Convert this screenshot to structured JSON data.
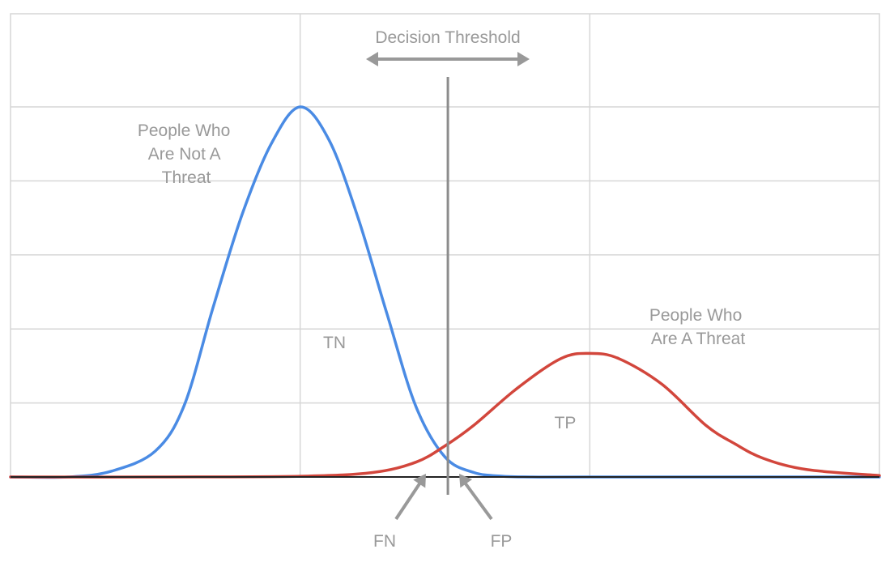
{
  "chart_data": {
    "type": "line",
    "title": "",
    "xlabel": "",
    "ylabel": "",
    "xlim": [
      0,
      6
    ],
    "ylim": [
      0,
      5
    ],
    "grid": true,
    "series": [
      {
        "name": "People Who Are Not A Threat",
        "color": "#4a8be4",
        "x": [
          0,
          0.4,
          0.7,
          1.0,
          1.2,
          1.4,
          1.6,
          1.8,
          2.0,
          2.2,
          2.4,
          2.6,
          2.8,
          3.0,
          3.2,
          3.4,
          3.6,
          4.0,
          5.0,
          6.0
        ],
        "y": [
          0,
          0,
          0.08,
          0.35,
          0.97,
          2.3,
          3.55,
          4.5,
          5.0,
          4.55,
          3.5,
          2.2,
          0.95,
          0.27,
          0.06,
          0.01,
          0,
          0,
          0,
          0
        ]
      },
      {
        "name": "People Who Are A Threat",
        "color": "#d2463c",
        "x": [
          0,
          1.0,
          2.0,
          2.5,
          2.8,
          3.0,
          3.2,
          3.5,
          3.8,
          4.0,
          4.2,
          4.5,
          4.8,
          5.0,
          5.2,
          5.5,
          6.0
        ],
        "y": [
          0,
          0,
          0.01,
          0.06,
          0.2,
          0.42,
          0.7,
          1.2,
          1.6,
          1.67,
          1.6,
          1.25,
          0.7,
          0.45,
          0.25,
          0.1,
          0.02
        ]
      }
    ],
    "threshold_x": 3.02,
    "annotations": {
      "threshold_label": "Decision Threshold",
      "not_threat_lines": [
        "People Who",
        "Are Not A",
        "Threat"
      ],
      "threat_lines": [
        "People Who",
        "Are A Threat"
      ],
      "tn": "TN",
      "tp": "TP",
      "fn": "FN",
      "fp": "FP"
    },
    "colors": {
      "grid": "#d6d6d6",
      "axis": "#222222",
      "annotation": "#999999"
    }
  }
}
